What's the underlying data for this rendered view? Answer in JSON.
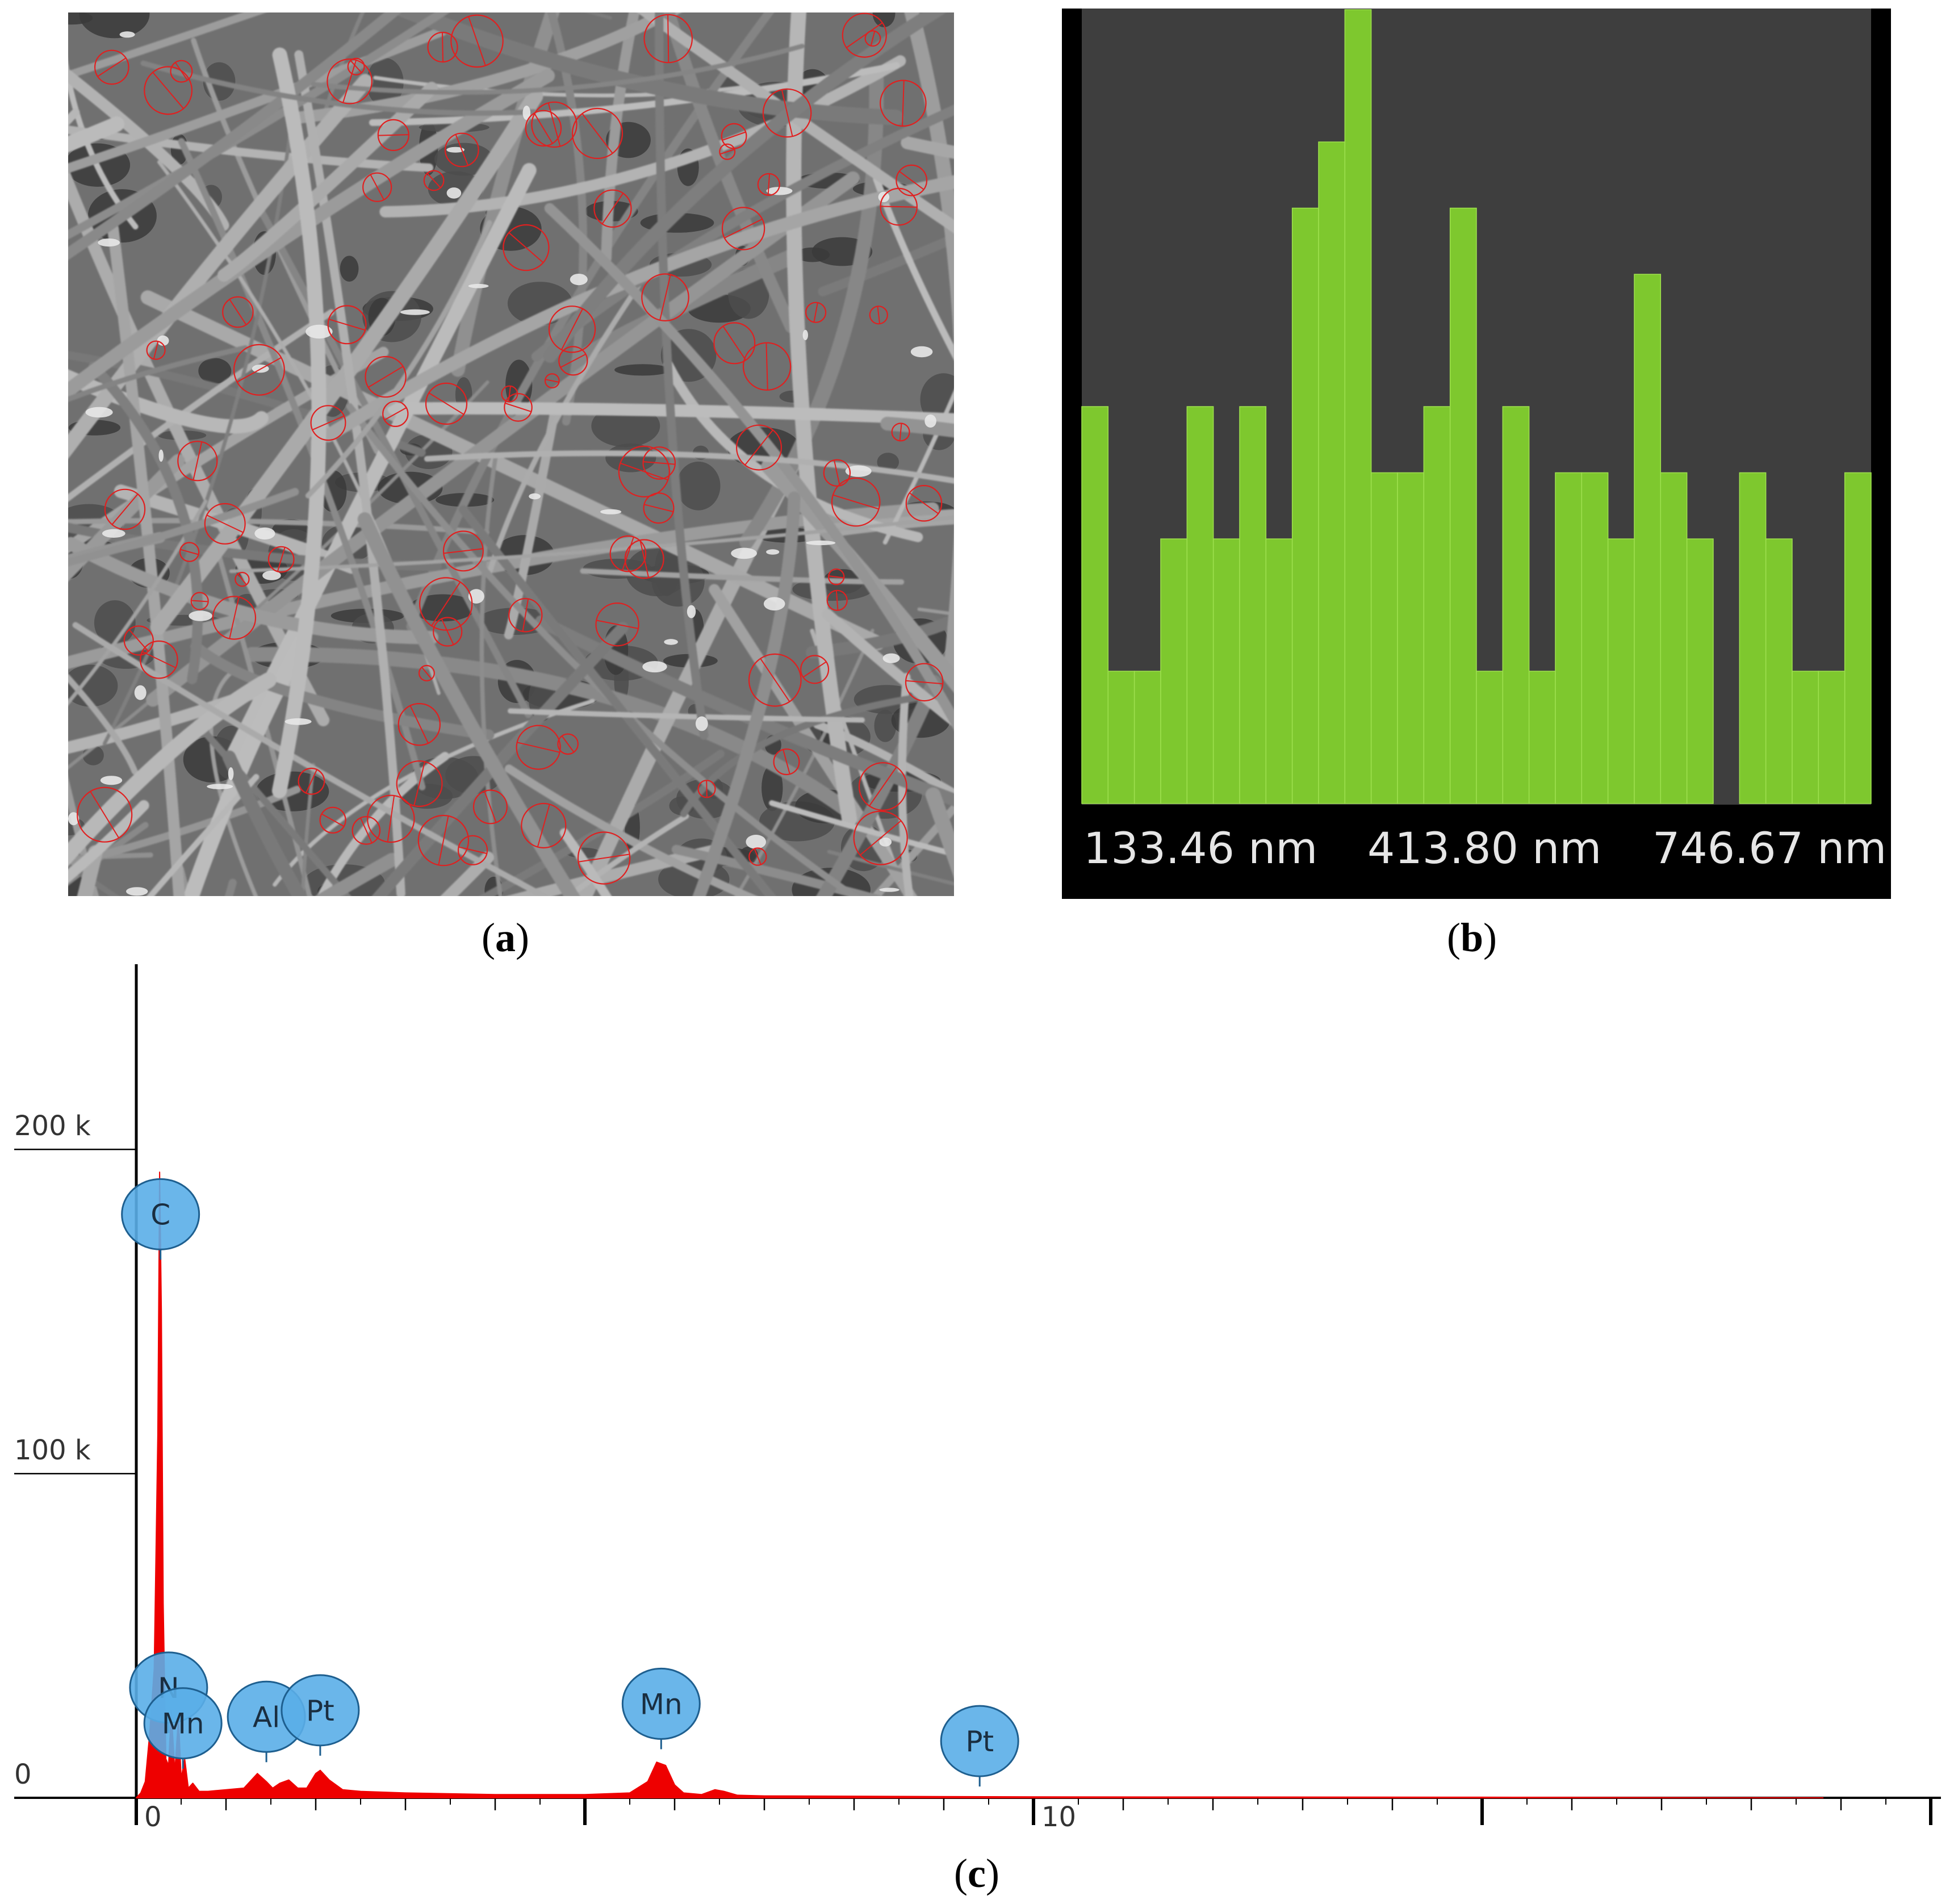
{
  "captions": {
    "a": {
      "open": "(",
      "letter": "a",
      "close": ")"
    },
    "b": {
      "open": "(",
      "letter": "b",
      "close": ")"
    },
    "c": {
      "open": "(",
      "letter": "c",
      "close": ")"
    }
  },
  "colors": {
    "hist_bar": "#7ec82e",
    "hist_bg": "#3e3e3e",
    "hist_frame": "#000000",
    "eds_spectrum": "#ee0000",
    "eds_marker_fill": "#5aaee8",
    "eds_marker_stroke": "#1e5f8f",
    "sem_annotation": "#e02020"
  },
  "chart_data": [
    {
      "panel": "b",
      "type": "bar",
      "tick_labels": [
        "133.46 nm",
        "413.80 nm",
        "746.67 nm"
      ],
      "x_unit": "nm",
      "x_range": [
        133.46,
        746.67
      ],
      "values": [
        6,
        2,
        2,
        4,
        6,
        4,
        6,
        4,
        9,
        10,
        12,
        5,
        5,
        6,
        9,
        2,
        6,
        2,
        5,
        5,
        4,
        8,
        5,
        4,
        0,
        5,
        4,
        2,
        2,
        5
      ],
      "ylim": [
        0,
        12
      ],
      "grid": false
    },
    {
      "panel": "c",
      "type": "line",
      "x_tick_labels": [
        "0",
        "10"
      ],
      "y_tick_labels": [
        "0",
        "100 k",
        "200 k"
      ],
      "xlim": [
        0,
        20
      ],
      "ylim": [
        0,
        220000
      ],
      "series": [
        {
          "x": [
            0,
            0.05,
            0.1,
            0.15,
            0.2,
            0.24,
            0.26,
            0.28,
            0.3,
            0.33,
            0.36,
            0.39,
            0.43,
            0.47,
            0.5,
            0.54,
            0.58,
            0.63,
            0.7,
            0.8,
            1.0,
            1.2,
            1.35,
            1.45,
            1.52,
            1.6,
            1.7,
            1.8,
            1.9,
            2.0,
            2.05,
            2.15,
            2.3,
            2.5,
            3.0,
            4.0,
            5.0,
            5.5,
            5.7,
            5.8,
            5.9,
            6.0,
            6.1,
            6.3,
            6.45,
            6.55,
            6.7,
            7.0,
            10.0,
            15.0,
            18.8
          ],
          "y": [
            0,
            1500,
            5000,
            20000,
            40000,
            112000,
            193000,
            150000,
            60000,
            12000,
            10000,
            27000,
            8000,
            25000,
            6000,
            12000,
            3000,
            4500,
            2000,
            2000,
            2500,
            3000,
            7500,
            5000,
            3000,
            4500,
            5500,
            3000,
            3000,
            7500,
            8500,
            5500,
            2500,
            2000,
            1500,
            1000,
            1000,
            1500,
            5000,
            11000,
            10000,
            4000,
            1500,
            1000,
            2500,
            2000,
            800,
            600,
            300,
            200,
            0
          ]
        }
      ],
      "markers": [
        {
          "label": "C",
          "x": 0.27,
          "y": 180000
        },
        {
          "label": "N",
          "x": 0.36,
          "y": 34000
        },
        {
          "label": "Mn",
          "x": 0.52,
          "y": 23000
        },
        {
          "label": "Al",
          "x": 1.45,
          "y": 25000
        },
        {
          "label": "Pt",
          "x": 2.05,
          "y": 27000
        },
        {
          "label": "Mn",
          "x": 5.85,
          "y": 29000
        },
        {
          "label": "Pt",
          "x": 9.4,
          "y": 17500
        }
      ]
    }
  ]
}
